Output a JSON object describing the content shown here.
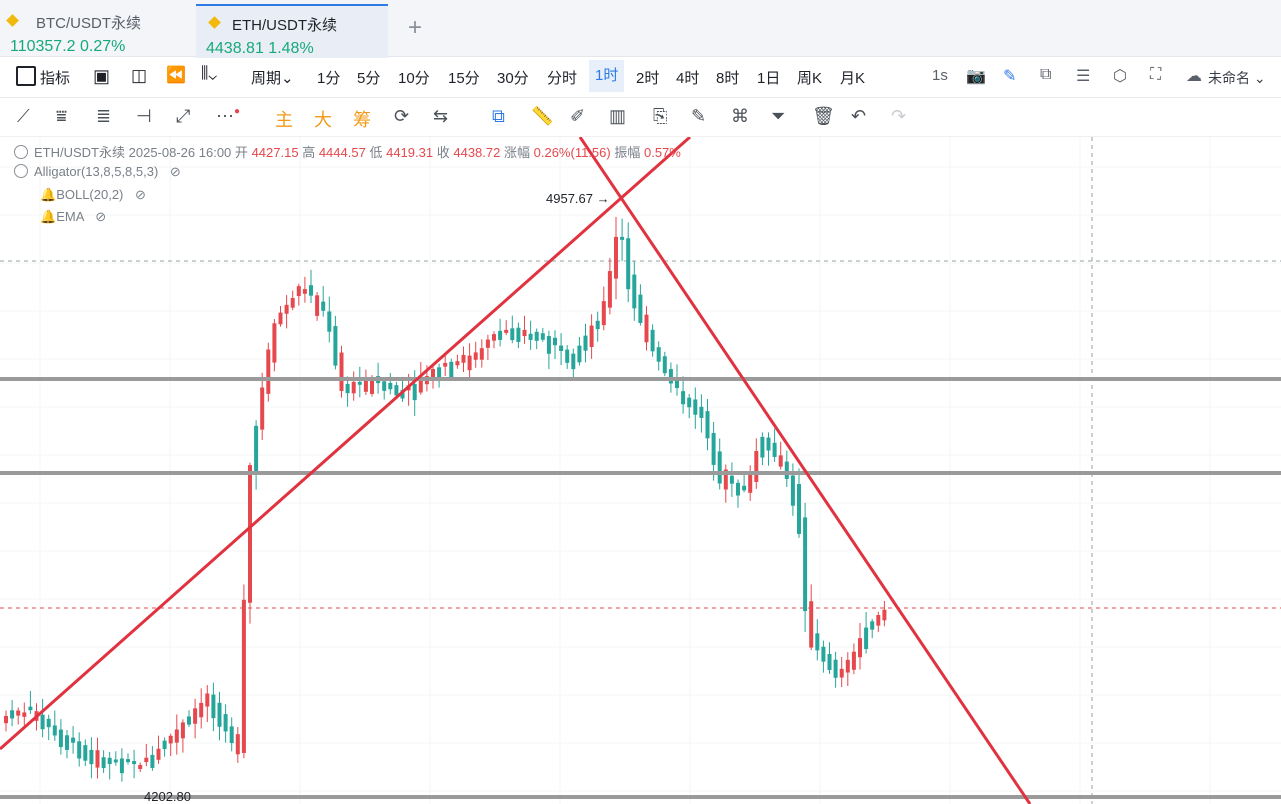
{
  "tabs": [
    {
      "name": "BTC/USDT永续",
      "price": "110357.2",
      "change": "0.27%"
    },
    {
      "name": "ETH/USDT永续",
      "price": "4438.81",
      "change": "1.48%"
    }
  ],
  "toolbar": {
    "indicators_label": "指标",
    "period_label": "周期",
    "periods": [
      "1分",
      "5分",
      "10分",
      "15分",
      "30分",
      "分时",
      "1时",
      "2时",
      "4时",
      "8时",
      "1日",
      "周K",
      "月K"
    ],
    "selected_period": "1时",
    "speed": "1s",
    "layout_name": "未命名"
  },
  "drawing_tools": {
    "main": "主",
    "big": "大",
    "chip": "筹"
  },
  "legend": {
    "symbol": "ETH/USDT永续",
    "datetime": "2025-08-26 16:00",
    "open_label": "开",
    "open": "4427.15",
    "high_label": "高",
    "high": "4444.57",
    "low_label": "低",
    "low": "4419.31",
    "close_label": "收",
    "close": "4438.72",
    "change_label": "涨幅",
    "change": "0.26%(11.56)",
    "amp_label": "振幅",
    "amp": "0.57%",
    "indicators": [
      "Alligator(13,8,5,8,5,3)",
      "BOLL(20,2)",
      "EMA"
    ]
  },
  "chart_data": {
    "type": "candlestick",
    "high_marker": "4957.67",
    "low_marker": "4202.80",
    "colors": {
      "up": "#e5484d",
      "down": "#26a69a",
      "trendline": "#e0323f",
      "hline": "#9a9a9a"
    }
  }
}
